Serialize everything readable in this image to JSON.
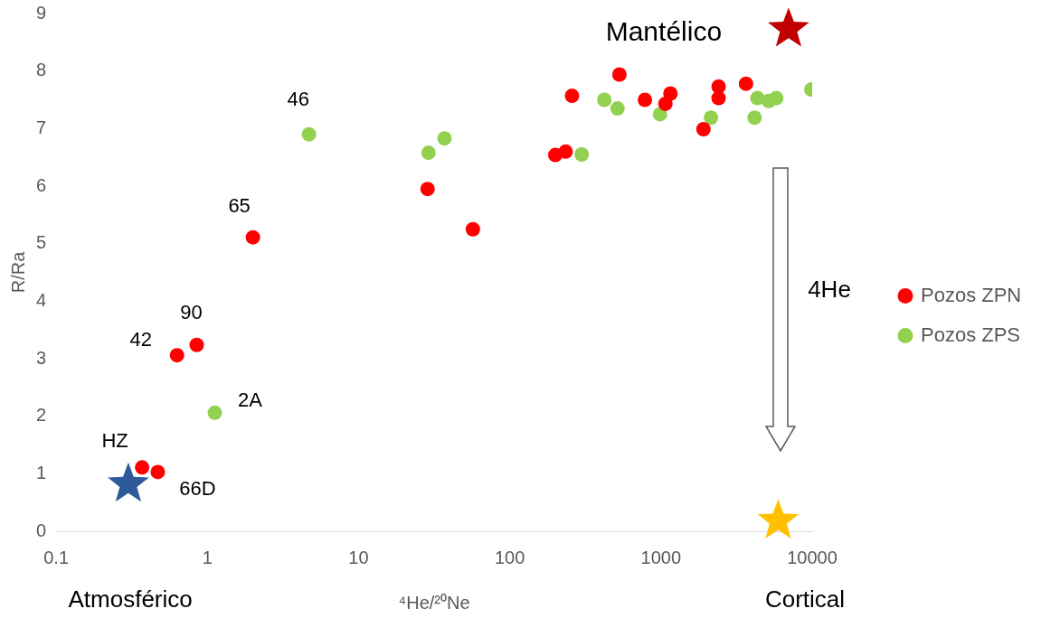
{
  "chart_data": {
    "type": "scatter",
    "xlabel": "⁴He/²⁰Ne",
    "ylabel": "R/Ra",
    "log": "x",
    "xlim": [
      0.1,
      10000
    ],
    "xticks": [
      0.1,
      1,
      10,
      100,
      1000,
      10000
    ],
    "ylim": [
      0,
      9
    ],
    "yticks": [
      0,
      1,
      2,
      3,
      4,
      5,
      6,
      7,
      8,
      9
    ],
    "grid": false,
    "legend": "right",
    "marker": "circle",
    "series": [
      {
        "name": "Pozos ZPN",
        "color": "#ff0000",
        "x": [
          0.37,
          0.47,
          0.63,
          0.85,
          2.0,
          28.6,
          57,
          258,
          531,
          783,
          1155,
          1070,
          200,
          234,
          2405,
          2405,
          1910,
          3650
        ],
        "values": [
          1.11,
          1.03,
          3.06,
          3.24,
          5.11,
          5.95,
          5.25,
          7.57,
          7.94,
          7.5,
          7.61,
          7.43,
          6.54,
          6.6,
          7.73,
          7.53,
          6.99,
          7.78
        ]
      },
      {
        "name": "Pozos ZPS",
        "color": "#92d050",
        "x": [
          4.7,
          1.12,
          29,
          37,
          299,
          422,
          516,
          986,
          2140,
          4160,
          4340,
          5160,
          5790,
          9860
        ],
        "values": [
          6.9,
          2.06,
          6.58,
          6.83,
          6.55,
          7.5,
          7.35,
          7.25,
          7.19,
          7.19,
          7.53,
          7.48,
          7.53,
          7.68
        ]
      },
      {
        "color": "#2e5a9c",
        "marker": "star",
        "x": [
          0.3
        ],
        "values": [
          0.82
        ]
      },
      {
        "color": "#c00000",
        "marker": "star",
        "x": [
          6980
        ],
        "values": [
          8.73
        ]
      },
      {
        "color": "#ffc000",
        "marker": "star",
        "x": [
          5960
        ],
        "values": [
          0.18
        ]
      }
    ],
    "annotations": [
      {
        "text": "46",
        "x": 4.7,
        "y": 6.9
      },
      {
        "text": "65",
        "x": 2.0,
        "y": 5.11
      },
      {
        "text": "90",
        "x": 0.85,
        "y": 3.24
      },
      {
        "text": "42",
        "x": 0.63,
        "y": 3.06
      },
      {
        "text": "2A",
        "x": 1.12,
        "y": 2.06
      },
      {
        "text": "HZ",
        "x": 0.37,
        "y": 1.11
      },
      {
        "text": "66D",
        "x": 0.47,
        "y": 1.03
      },
      {
        "text": "Mantélico",
        "x": 6980,
        "y": 8.73
      },
      "4He",
      "Atmosférico",
      "Cortical"
    ]
  }
}
